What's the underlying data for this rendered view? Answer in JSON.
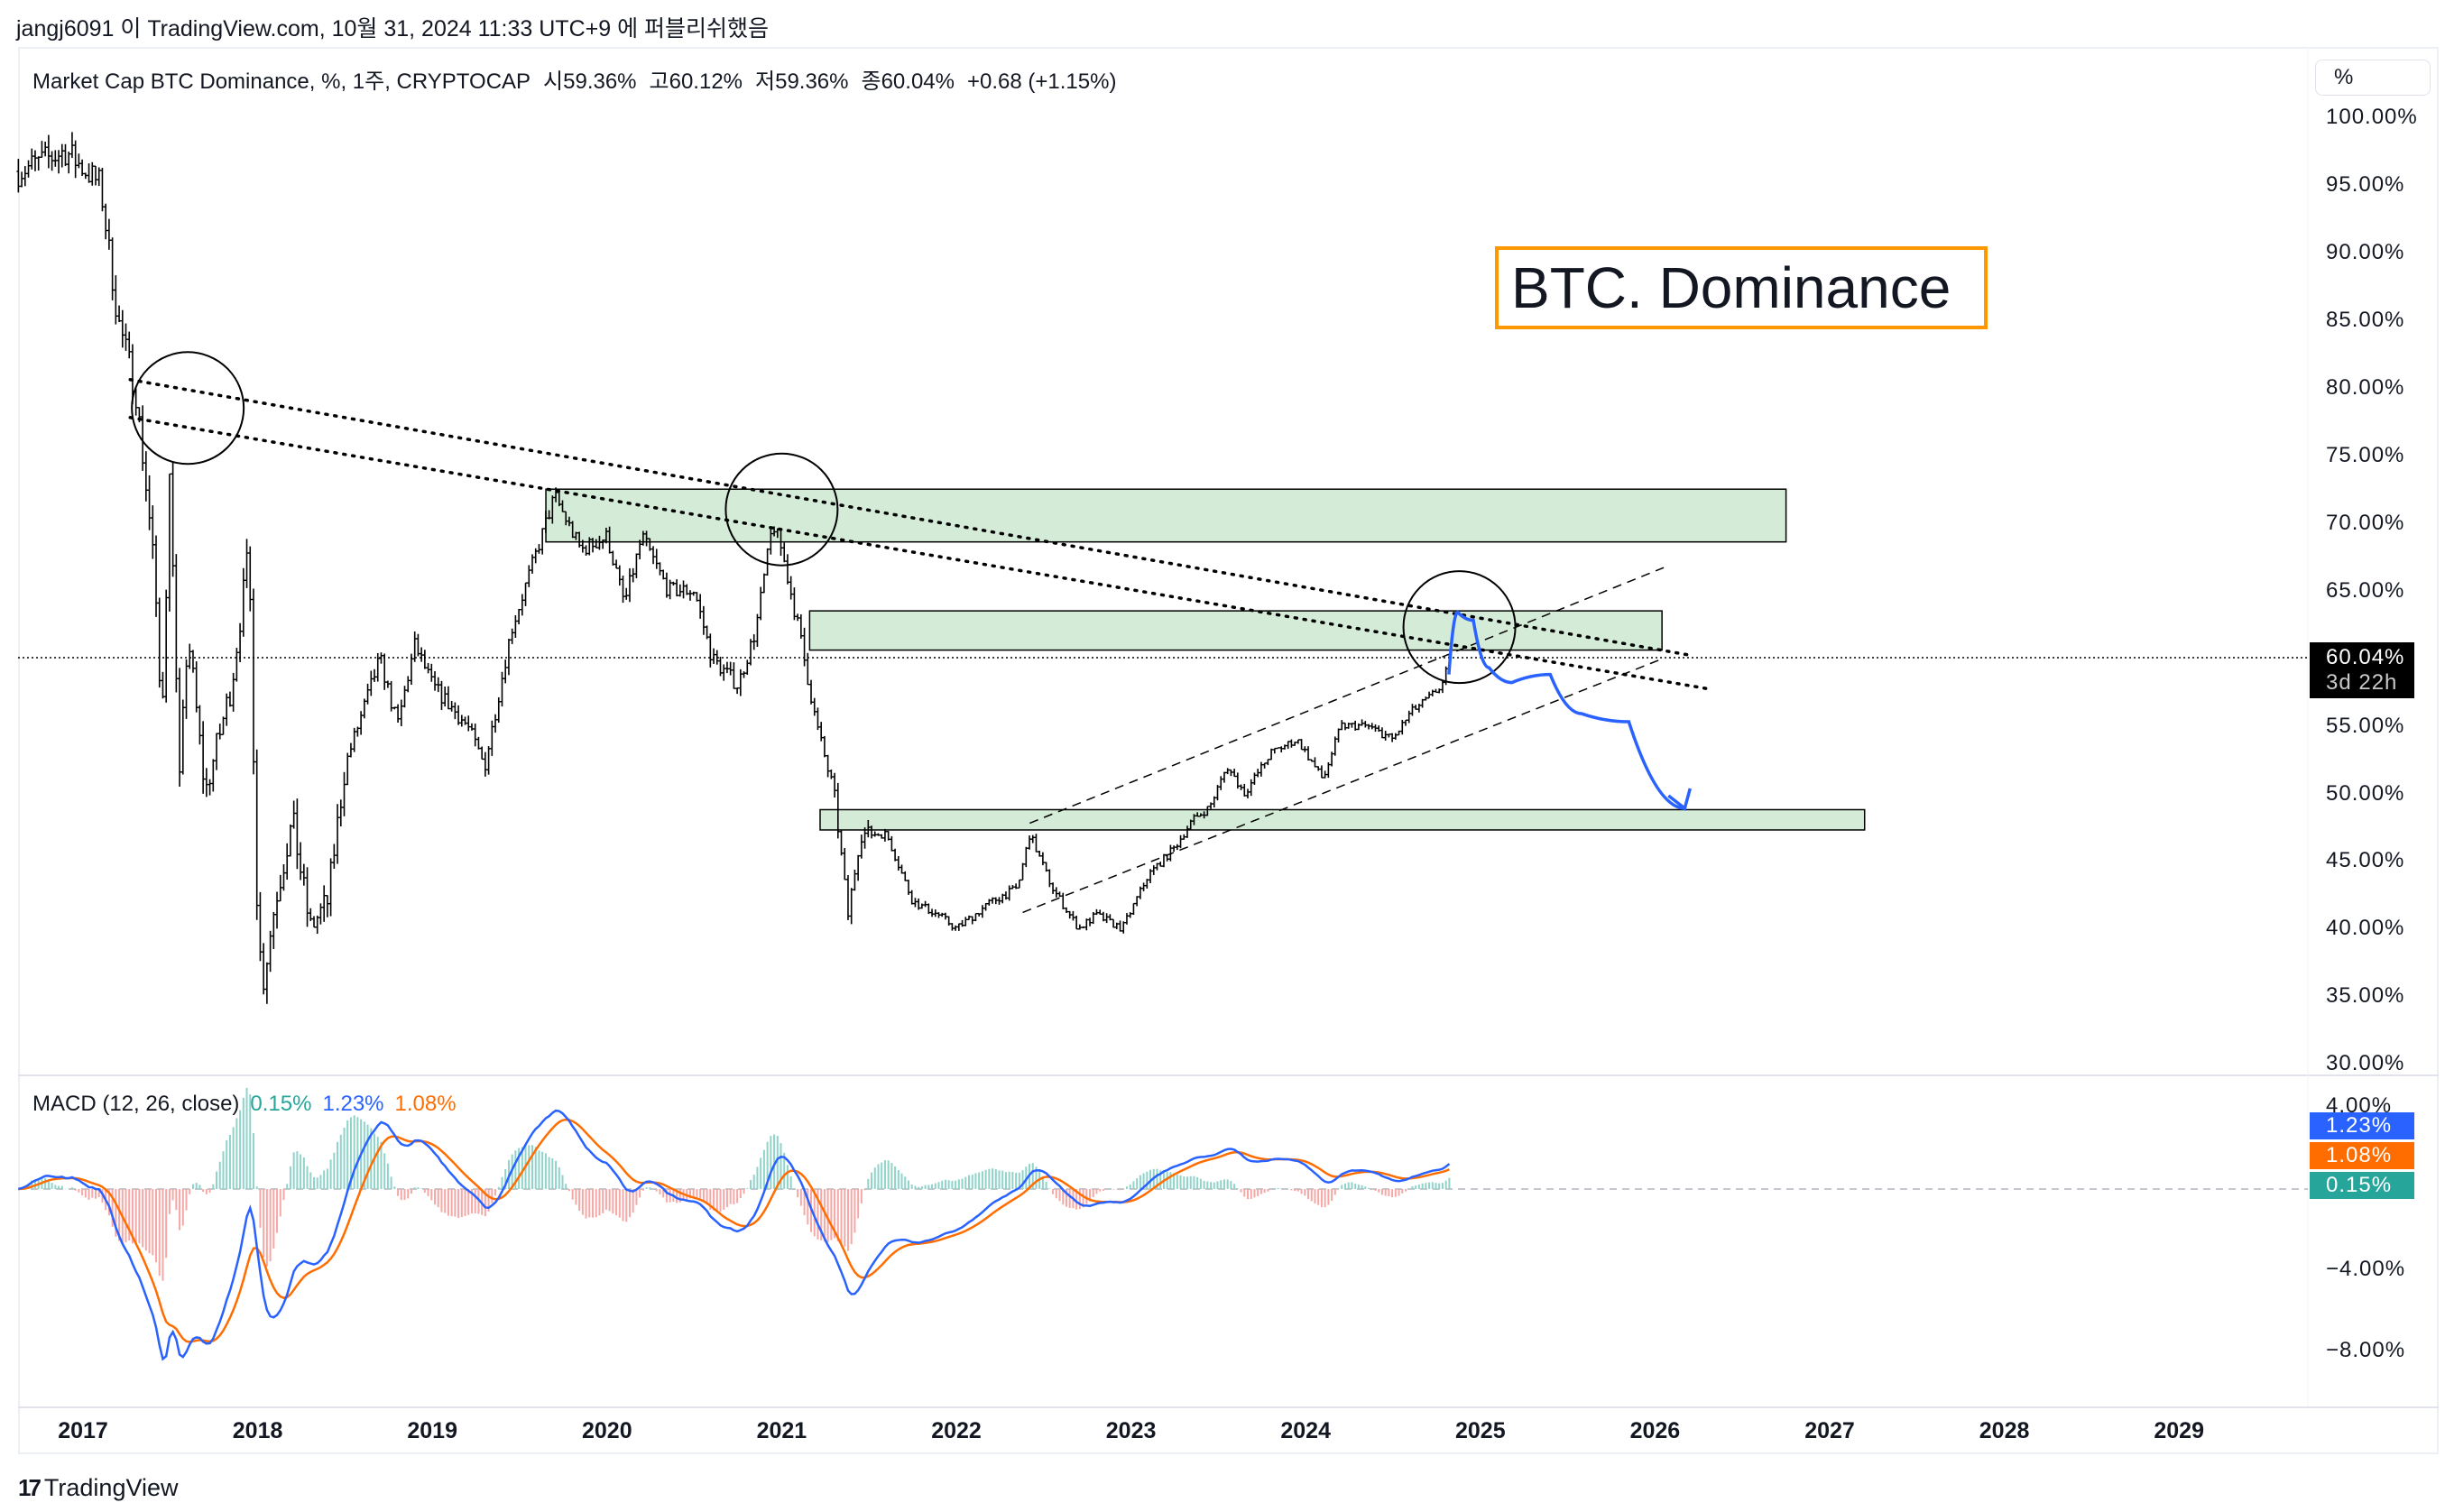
{
  "header": {
    "published": "jangj6091 이 TradingView.com, 10월 31, 2024 11:33 UTC+9 에 퍼블리쉬했음"
  },
  "legend": {
    "symbol": "Market Cap BTC Dominance, %, 1주, CRYPTOCAP",
    "open": "시59.36%",
    "high": "고60.12%",
    "low": "저59.36%",
    "close": "종60.04%",
    "change": "+0.68 (+1.15%)"
  },
  "unit_button": "%",
  "annotation_title": "BTC. Dominance",
  "last_price": {
    "value": "60.04%",
    "countdown": "3d 22h"
  },
  "macd": {
    "label": "MACD (12, 26, close)",
    "histogram": "0.15%",
    "macd": "1.23%",
    "signal": "1.08%",
    "axis_labels": [
      "4.00%",
      "−4.00%",
      "−8.00%"
    ]
  },
  "branding": {
    "logo_text": "TradingView"
  },
  "colors": {
    "macd": "#2962ff",
    "signal": "#ff6d00",
    "hist_up": "#26a69a",
    "hist_down": "#ef5350",
    "zone": "#d4ecd7",
    "title_border": "#ff9800",
    "projection": "#2962ff"
  },
  "chart_data": {
    "type": "candlestick",
    "interval": "1 week",
    "price_axis": {
      "labels": [
        "100.00%",
        "95.00%",
        "90.00%",
        "85.00%",
        "80.00%",
        "75.00%",
        "70.00%",
        "65.00%",
        "55.00%",
        "50.00%",
        "45.00%",
        "40.00%",
        "35.00%",
        "30.00%"
      ],
      "range": [
        30,
        100
      ]
    },
    "time_axis": {
      "labels": [
        "2017",
        "2018",
        "2019",
        "2020",
        "2021",
        "2022",
        "2023",
        "2024",
        "2025",
        "2026",
        "2027",
        "2028",
        "2029"
      ]
    },
    "price_path": [
      [
        2016.63,
        96
      ],
      [
        2016.9,
        97.5
      ],
      [
        2017.1,
        95
      ],
      [
        2017.2,
        85
      ],
      [
        2017.3,
        80
      ],
      [
        2017.4,
        68
      ],
      [
        2017.45,
        55
      ],
      [
        2017.5,
        75
      ],
      [
        2017.55,
        50
      ],
      [
        2017.6,
        62
      ],
      [
        2017.7,
        50
      ],
      [
        2017.85,
        58
      ],
      [
        2017.95,
        68
      ],
      [
        2018.0,
        40
      ],
      [
        2018.03,
        36
      ],
      [
        2018.1,
        42
      ],
      [
        2018.2,
        48
      ],
      [
        2018.3,
        40
      ],
      [
        2018.4,
        42
      ],
      [
        2018.5,
        52
      ],
      [
        2018.7,
        60
      ],
      [
        2018.8,
        55
      ],
      [
        2018.9,
        61
      ],
      [
        2019.0,
        58
      ],
      [
        2019.2,
        55
      ],
      [
        2019.3,
        52
      ],
      [
        2019.45,
        62
      ],
      [
        2019.6,
        68
      ],
      [
        2019.7,
        72
      ],
      [
        2019.85,
        68
      ],
      [
        2020.0,
        69
      ],
      [
        2020.1,
        64
      ],
      [
        2020.2,
        69
      ],
      [
        2020.35,
        65
      ],
      [
        2020.5,
        65
      ],
      [
        2020.6,
        60
      ],
      [
        2020.75,
        58
      ],
      [
        2020.85,
        62
      ],
      [
        2020.95,
        70
      ],
      [
        2021.0,
        68
      ],
      [
        2021.1,
        62
      ],
      [
        2021.2,
        55
      ],
      [
        2021.3,
        50
      ],
      [
        2021.38,
        41
      ],
      [
        2021.45,
        47
      ],
      [
        2021.6,
        47
      ],
      [
        2021.75,
        42
      ],
      [
        2021.9,
        41
      ],
      [
        2022.0,
        40
      ],
      [
        2022.2,
        42
      ],
      [
        2022.35,
        43
      ],
      [
        2022.42,
        47
      ],
      [
        2022.55,
        43
      ],
      [
        2022.7,
        40
      ],
      [
        2022.8,
        41
      ],
      [
        2022.95,
        40
      ],
      [
        2023.1,
        44
      ],
      [
        2023.25,
        46
      ],
      [
        2023.35,
        48
      ],
      [
        2023.45,
        49
      ],
      [
        2023.55,
        52
      ],
      [
        2023.65,
        50
      ],
      [
        2023.8,
        53
      ],
      [
        2023.95,
        54
      ],
      [
        2024.1,
        51
      ],
      [
        2024.2,
        55
      ],
      [
        2024.35,
        55
      ],
      [
        2024.5,
        54
      ],
      [
        2024.6,
        56
      ],
      [
        2024.7,
        57
      ],
      [
        2024.78,
        58
      ],
      [
        2024.83,
        60.04
      ]
    ],
    "last_close": 60.04,
    "zones": [
      {
        "from": 2019.65,
        "to": 2026.75,
        "low": 68.6,
        "high": 72.5
      },
      {
        "from": 2021.16,
        "to": 2026.04,
        "low": 60.6,
        "high": 63.5
      },
      {
        "from": 2021.22,
        "to": 2027.2,
        "low": 47.3,
        "high": 48.8
      }
    ],
    "trendlines_dotted": [
      [
        [
          2017.27,
          80.6
        ],
        [
          2026.21,
          60.2
        ]
      ],
      [
        [
          2017.27,
          77.8
        ],
        [
          2026.32,
          57.7
        ]
      ]
    ],
    "channel_dashed": [
      [
        [
          2022.42,
          47.8
        ],
        [
          2026.05,
          66.7
        ]
      ],
      [
        [
          2022.38,
          41.2
        ],
        [
          2026.05,
          60.0
        ]
      ]
    ],
    "circles": [
      [
        2017.6,
        78.5
      ],
      [
        2021.0,
        71.0
      ],
      [
        2024.88,
        62.3
      ]
    ],
    "projection": [
      [
        2024.82,
        58.8
      ],
      [
        2024.87,
        63.4
      ],
      [
        2024.96,
        62.8
      ],
      [
        2025.05,
        59.3
      ],
      [
        2025.18,
        58.2
      ],
      [
        2025.4,
        58.8
      ],
      [
        2025.58,
        55.9
      ],
      [
        2025.85,
        55.3
      ],
      [
        2026.17,
        48.9
      ]
    ],
    "macd_axis": {
      "range": [
        -10,
        5
      ]
    }
  }
}
